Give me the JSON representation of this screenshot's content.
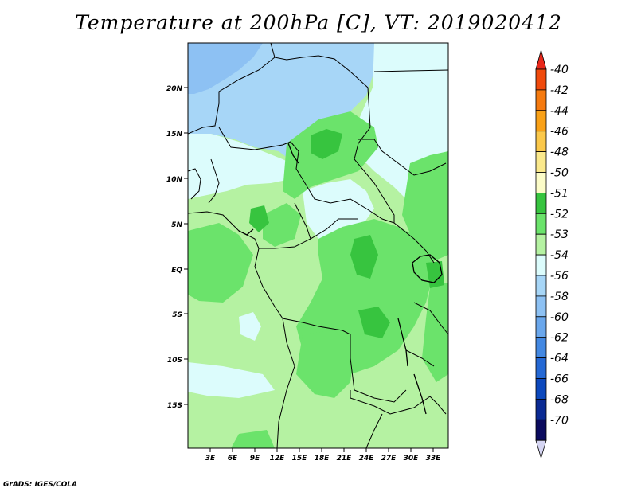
{
  "title": "Temperature at 200hPa [C], VT: 2019020412",
  "footer": "GrADS: IGES/COLA",
  "map": {
    "lat_labels": [
      "20N",
      "15N",
      "10N",
      "5N",
      "EQ",
      "5S",
      "10S",
      "15S"
    ],
    "lon_labels": [
      "3E",
      "6E",
      "9E",
      "12E",
      "15E",
      "18E",
      "21E",
      "24E",
      "27E",
      "30E",
      "33E"
    ]
  },
  "colorbar": {
    "labels": [
      "-40",
      "-42",
      "-44",
      "-46",
      "-48",
      "-50",
      "-51",
      "-52",
      "-53",
      "-54",
      "-56",
      "-58",
      "-60",
      "-62",
      "-64",
      "-66",
      "-68",
      "-70"
    ],
    "colors": [
      "#e8281b",
      "#f04a0c",
      "#f57a0f",
      "#f9a117",
      "#fbc84a",
      "#fbe98c",
      "#fcfcc8",
      "#37c43f",
      "#6be36b",
      "#b5f2a2",
      "#dcfcfc",
      "#a7d6f7",
      "#8dc1f3",
      "#6aa7ec",
      "#4388e2",
      "#2468d4",
      "#0c48bd",
      "#0a2a93",
      "#0b0b5e",
      "#d5d5f2"
    ]
  }
}
